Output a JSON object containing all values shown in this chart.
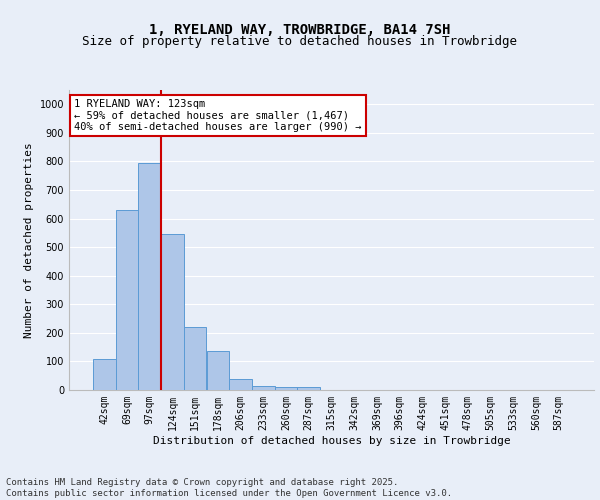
{
  "title": "1, RYELAND WAY, TROWBRIDGE, BA14 7SH",
  "subtitle": "Size of property relative to detached houses in Trowbridge",
  "xlabel": "Distribution of detached houses by size in Trowbridge",
  "ylabel": "Number of detached properties",
  "categories": [
    "42sqm",
    "69sqm",
    "97sqm",
    "124sqm",
    "151sqm",
    "178sqm",
    "206sqm",
    "233sqm",
    "260sqm",
    "287sqm",
    "315sqm",
    "342sqm",
    "369sqm",
    "396sqm",
    "424sqm",
    "451sqm",
    "478sqm",
    "505sqm",
    "533sqm",
    "560sqm",
    "587sqm"
  ],
  "values": [
    108,
    630,
    795,
    545,
    220,
    135,
    40,
    15,
    10,
    10,
    0,
    0,
    0,
    0,
    0,
    0,
    0,
    0,
    0,
    0,
    0
  ],
  "bar_color": "#aec6e8",
  "bar_edge_color": "#5b9bd5",
  "vline_color": "#cc0000",
  "vline_pos": 2.5,
  "annotation_text": "1 RYELAND WAY: 123sqm\n← 59% of detached houses are smaller (1,467)\n40% of semi-detached houses are larger (990) →",
  "annotation_box_color": "#ffffff",
  "annotation_box_edge_color": "#cc0000",
  "ylim": [
    0,
    1050
  ],
  "yticks": [
    0,
    100,
    200,
    300,
    400,
    500,
    600,
    700,
    800,
    900,
    1000
  ],
  "background_color": "#e8eef8",
  "fig_background_color": "#e8eef8",
  "grid_color": "#ffffff",
  "footer_text": "Contains HM Land Registry data © Crown copyright and database right 2025.\nContains public sector information licensed under the Open Government Licence v3.0.",
  "title_fontsize": 10,
  "subtitle_fontsize": 9,
  "axis_label_fontsize": 8,
  "tick_fontsize": 7,
  "annotation_fontsize": 7.5,
  "footer_fontsize": 6.5
}
